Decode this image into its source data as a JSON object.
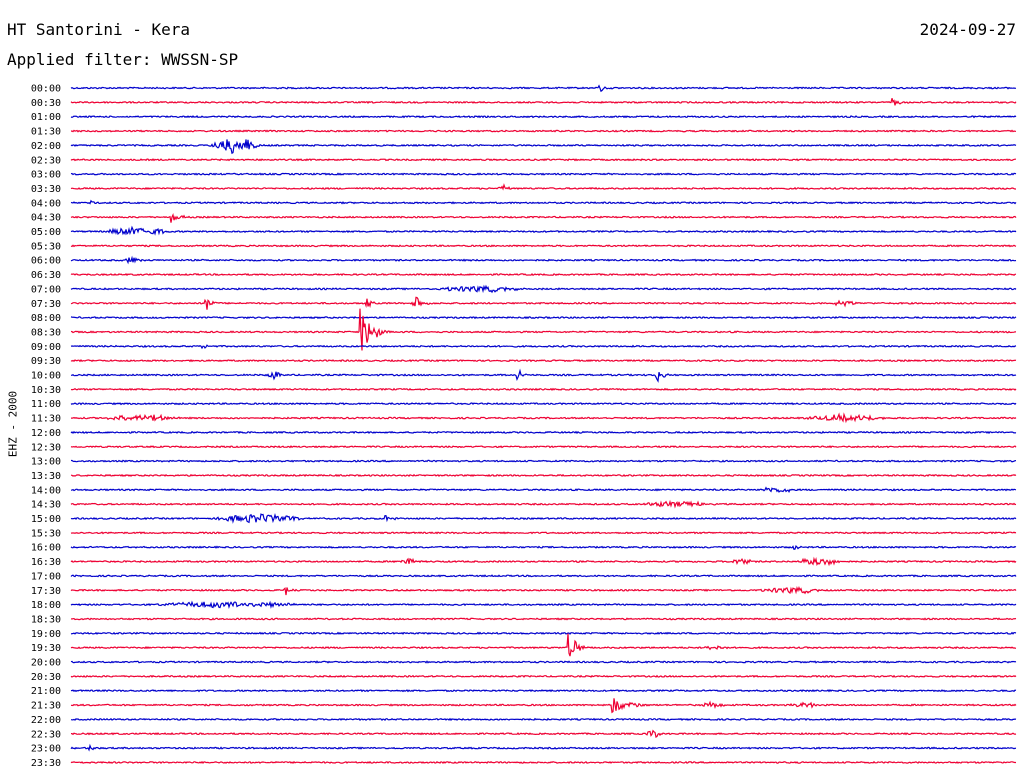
{
  "header": {
    "station": "HT Santorini - Kera",
    "date": "2024-09-27",
    "filter": "Applied filter: WWSSN-SP"
  },
  "channel_label": "EHZ - 2000",
  "colors": {
    "trace_odd": "#0000cc",
    "trace_even": "#ee0033",
    "background": "#ffffff",
    "text": "#000000"
  },
  "chart_data": {
    "type": "line",
    "title": "",
    "xlabel": "",
    "ylabel": "EHZ - 2000",
    "grid": false,
    "legend": "none",
    "categories": [
      "00:00",
      "00:30",
      "01:00",
      "01:30",
      "02:00",
      "02:30",
      "03:00",
      "03:30",
      "04:00",
      "04:30",
      "05:00",
      "05:30",
      "06:00",
      "06:30",
      "07:00",
      "07:30",
      "08:00",
      "08:30",
      "09:00",
      "09:30",
      "10:00",
      "10:30",
      "11:00",
      "11:30",
      "12:00",
      "12:30",
      "13:00",
      "13:30",
      "14:00",
      "14:30",
      "15:00",
      "15:30",
      "16:00",
      "16:30",
      "17:00",
      "17:30",
      "18:00",
      "18:30",
      "19:00",
      "19:30",
      "20:00",
      "20:30",
      "21:00",
      "21:30",
      "22:00",
      "22:30",
      "23:00",
      "23:30"
    ],
    "trace_window_minutes": 30,
    "events": [
      {
        "row": "00:00",
        "minute": 16.8,
        "amp": 0.35,
        "dur": 0.4,
        "kind": "spike"
      },
      {
        "row": "00:30",
        "minute": 26.1,
        "amp": 0.3,
        "dur": 0.5,
        "kind": "spike"
      },
      {
        "row": "02:00",
        "minute": 4.4,
        "amp": 0.6,
        "dur": 1.6,
        "kind": "burst"
      },
      {
        "row": "03:30",
        "minute": 13.5,
        "amp": 0.2,
        "dur": 0.5,
        "kind": "burst"
      },
      {
        "row": "04:00",
        "minute": 0.5,
        "amp": 0.18,
        "dur": 0.3,
        "kind": "burst"
      },
      {
        "row": "04:30",
        "minute": 3.2,
        "amp": 0.45,
        "dur": 0.5,
        "kind": "spike"
      },
      {
        "row": "05:00",
        "minute": 1.0,
        "amp": 0.28,
        "dur": 2.2,
        "kind": "burst"
      },
      {
        "row": "06:00",
        "minute": 1.6,
        "amp": 0.22,
        "dur": 0.7,
        "kind": "burst"
      },
      {
        "row": "07:00",
        "minute": 11.5,
        "amp": 0.2,
        "dur": 3.0,
        "kind": "burst"
      },
      {
        "row": "07:30",
        "minute": 4.3,
        "amp": 0.6,
        "dur": 0.4,
        "kind": "spike"
      },
      {
        "row": "07:30",
        "minute": 9.4,
        "amp": 0.45,
        "dur": 0.3,
        "kind": "spike"
      },
      {
        "row": "07:30",
        "minute": 10.9,
        "amp": 0.75,
        "dur": 0.6,
        "kind": "spike"
      },
      {
        "row": "07:30",
        "minute": 24.0,
        "amp": 0.18,
        "dur": 1.0,
        "kind": "burst"
      },
      {
        "row": "08:30",
        "minute": 9.2,
        "amp": 1.7,
        "dur": 0.9,
        "kind": "spike"
      },
      {
        "row": "09:00",
        "minute": 4.2,
        "amp": 0.18,
        "dur": 0.3,
        "kind": "spike"
      },
      {
        "row": "10:00",
        "minute": 6.2,
        "amp": 0.25,
        "dur": 0.5,
        "kind": "burst"
      },
      {
        "row": "10:00",
        "minute": 14.2,
        "amp": 0.55,
        "dur": 0.3,
        "kind": "spike"
      },
      {
        "row": "10:00",
        "minute": 18.6,
        "amp": 0.65,
        "dur": 0.4,
        "kind": "spike"
      },
      {
        "row": "11:30",
        "minute": 1.0,
        "amp": 0.22,
        "dur": 2.5,
        "kind": "burst"
      },
      {
        "row": "11:30",
        "minute": 23.2,
        "amp": 0.22,
        "dur": 2.8,
        "kind": "burst"
      },
      {
        "row": "14:00",
        "minute": 21.8,
        "amp": 0.18,
        "dur": 1.2,
        "kind": "burst"
      },
      {
        "row": "14:30",
        "minute": 18.0,
        "amp": 0.18,
        "dur": 2.5,
        "kind": "burst"
      },
      {
        "row": "15:00",
        "minute": 4.5,
        "amp": 0.3,
        "dur": 3.0,
        "kind": "burst"
      },
      {
        "row": "15:00",
        "minute": 10.0,
        "amp": 0.25,
        "dur": 0.5,
        "kind": "spike"
      },
      {
        "row": "16:00",
        "minute": 23.0,
        "amp": 0.2,
        "dur": 0.3,
        "kind": "spike"
      },
      {
        "row": "16:30",
        "minute": 10.4,
        "amp": 0.22,
        "dur": 0.6,
        "kind": "burst"
      },
      {
        "row": "16:30",
        "minute": 20.9,
        "amp": 0.18,
        "dur": 0.8,
        "kind": "burst"
      },
      {
        "row": "16:30",
        "minute": 23.0,
        "amp": 0.25,
        "dur": 1.5,
        "kind": "burst"
      },
      {
        "row": "17:30",
        "minute": 6.8,
        "amp": 0.45,
        "dur": 0.3,
        "kind": "spike"
      },
      {
        "row": "17:30",
        "minute": 21.8,
        "amp": 0.2,
        "dur": 2.2,
        "kind": "burst"
      },
      {
        "row": "18:00",
        "minute": 2.5,
        "amp": 0.2,
        "dur": 5.0,
        "kind": "burst"
      },
      {
        "row": "19:30",
        "minute": 15.8,
        "amp": 1.1,
        "dur": 0.6,
        "kind": "spike"
      },
      {
        "row": "19:30",
        "minute": 20.0,
        "amp": 0.16,
        "dur": 1.0,
        "kind": "burst"
      },
      {
        "row": "21:30",
        "minute": 17.2,
        "amp": 0.6,
        "dur": 1.2,
        "kind": "spike"
      },
      {
        "row": "21:30",
        "minute": 20.0,
        "amp": 0.18,
        "dur": 0.8,
        "kind": "burst"
      },
      {
        "row": "21:30",
        "minute": 22.8,
        "amp": 0.16,
        "dur": 1.0,
        "kind": "burst"
      },
      {
        "row": "22:30",
        "minute": 18.2,
        "amp": 0.25,
        "dur": 0.6,
        "kind": "burst"
      },
      {
        "row": "23:00",
        "minute": 0.6,
        "amp": 0.2,
        "dur": 0.3,
        "kind": "spike"
      }
    ]
  }
}
